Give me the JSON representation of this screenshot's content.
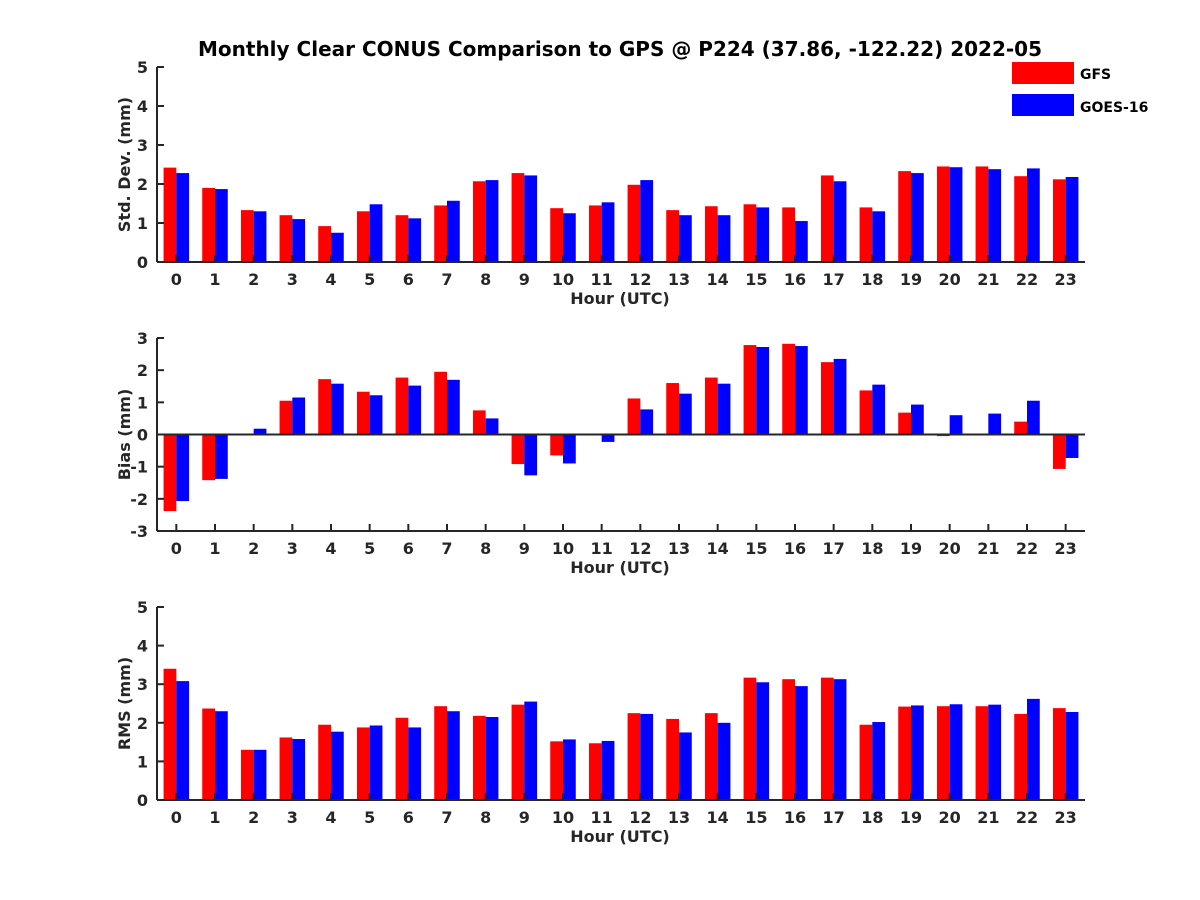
{
  "title": "Monthly Clear CONUS Comparison to GPS @ P224 (37.86, -122.22) 2022-05",
  "colors": {
    "GFS": "#ff0000",
    "GOES-16": "#0000ff",
    "axis": "#262626"
  },
  "legend": {
    "placement": "top-right",
    "entries": [
      "GFS",
      "GOES-16"
    ]
  },
  "chart_data": [
    {
      "type": "bar",
      "ylabel": "Std. Dev. (mm)",
      "xlabel": "Hour (UTC)",
      "ylim": [
        0,
        5
      ],
      "yticks": [
        0,
        1,
        2,
        3,
        4,
        5
      ],
      "categories": [
        "0",
        "1",
        "2",
        "3",
        "4",
        "5",
        "6",
        "7",
        "8",
        "9",
        "10",
        "11",
        "12",
        "13",
        "14",
        "15",
        "16",
        "17",
        "18",
        "19",
        "20",
        "21",
        "22",
        "23"
      ],
      "series": [
        {
          "name": "GFS",
          "values": [
            2.42,
            1.9,
            1.33,
            1.2,
            0.92,
            1.3,
            1.2,
            1.45,
            2.07,
            2.28,
            1.38,
            1.45,
            1.98,
            1.33,
            1.43,
            1.48,
            1.4,
            2.22,
            1.4,
            2.33,
            2.45,
            2.45,
            2.2,
            2.12
          ]
        },
        {
          "name": "GOES-16",
          "values": [
            2.28,
            1.87,
            1.3,
            1.1,
            0.75,
            1.48,
            1.12,
            1.57,
            2.1,
            2.22,
            1.25,
            1.53,
            2.1,
            1.2,
            1.2,
            1.4,
            1.05,
            2.07,
            1.3,
            2.28,
            2.43,
            2.38,
            2.4,
            2.18
          ]
        }
      ]
    },
    {
      "type": "bar",
      "ylabel": "Bias (mm)",
      "xlabel": "Hour (UTC)",
      "ylim": [
        -3,
        3
      ],
      "yticks": [
        -3,
        -2,
        -1,
        0,
        1,
        2,
        3
      ],
      "categories": [
        "0",
        "1",
        "2",
        "3",
        "4",
        "5",
        "6",
        "7",
        "8",
        "9",
        "10",
        "11",
        "12",
        "13",
        "14",
        "15",
        "16",
        "17",
        "18",
        "19",
        "20",
        "21",
        "22",
        "23"
      ],
      "series": [
        {
          "name": "GFS",
          "values": [
            -2.38,
            -1.42,
            0.0,
            1.05,
            1.72,
            1.33,
            1.77,
            1.95,
            0.75,
            -0.92,
            -0.65,
            0.02,
            1.12,
            1.6,
            1.77,
            2.78,
            2.82,
            2.25,
            1.37,
            0.68,
            -0.05,
            -0.03,
            0.4,
            -1.07
          ]
        },
        {
          "name": "GOES-16",
          "values": [
            -2.07,
            -1.38,
            0.18,
            1.15,
            1.58,
            1.22,
            1.52,
            1.7,
            0.5,
            -1.27,
            -0.9,
            -0.23,
            0.78,
            1.27,
            1.58,
            2.72,
            2.75,
            2.35,
            1.55,
            0.93,
            0.6,
            0.65,
            1.05,
            -0.73
          ]
        }
      ]
    },
    {
      "type": "bar",
      "ylabel": "RMS (mm)",
      "xlabel": "Hour (UTC)",
      "ylim": [
        0,
        5
      ],
      "yticks": [
        0,
        1,
        2,
        3,
        4,
        5
      ],
      "categories": [
        "0",
        "1",
        "2",
        "3",
        "4",
        "5",
        "6",
        "7",
        "8",
        "9",
        "10",
        "11",
        "12",
        "13",
        "14",
        "15",
        "16",
        "17",
        "18",
        "19",
        "20",
        "21",
        "22",
        "23"
      ],
      "series": [
        {
          "name": "GFS",
          "values": [
            3.4,
            2.37,
            1.3,
            1.62,
            1.95,
            1.88,
            2.13,
            2.43,
            2.18,
            2.47,
            1.52,
            1.47,
            2.25,
            2.1,
            2.25,
            3.17,
            3.13,
            3.17,
            1.95,
            2.42,
            2.43,
            2.43,
            2.23,
            2.38
          ]
        },
        {
          "name": "GOES-16",
          "values": [
            3.08,
            2.3,
            1.3,
            1.58,
            1.77,
            1.93,
            1.88,
            2.3,
            2.15,
            2.55,
            1.57,
            1.53,
            2.23,
            1.75,
            2.0,
            3.05,
            2.95,
            3.13,
            2.02,
            2.45,
            2.48,
            2.47,
            2.62,
            2.28
          ]
        }
      ]
    }
  ]
}
